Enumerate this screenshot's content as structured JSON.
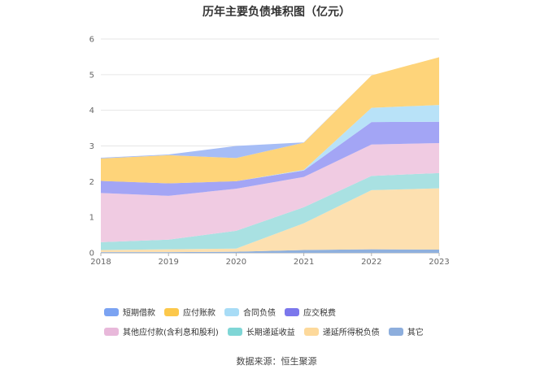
{
  "chart_data": {
    "type": "area",
    "stacked": true,
    "title": "历年主要负债堆积图（亿元）",
    "x": [
      "2018",
      "2019",
      "2020",
      "2021",
      "2022",
      "2023"
    ],
    "ylim": [
      0,
      6
    ],
    "yticks": [
      "0",
      "1",
      "2",
      "3",
      "4",
      "5",
      "6"
    ],
    "grid": true,
    "legend_position": "bottom",
    "series": [
      {
        "name": "其它",
        "color": "#8fb0dd",
        "values": [
          0.02,
          0.02,
          0.03,
          0.08,
          0.1,
          0.09
        ]
      },
      {
        "name": "递延所得税负债",
        "color": "#fde0b0",
        "values": [
          0.06,
          0.08,
          0.09,
          0.75,
          1.66,
          1.72
        ]
      },
      {
        "name": "长期递延收益",
        "color": "#a9e1e2",
        "values": [
          0.22,
          0.27,
          0.5,
          0.45,
          0.4,
          0.43
        ]
      },
      {
        "name": "其他应付款(含利息和股利)",
        "color": "#f0cbe2",
        "values": [
          1.38,
          1.23,
          1.18,
          0.85,
          0.88,
          0.84
        ]
      },
      {
        "name": "应交税费",
        "color": "#a3a5f5",
        "values": [
          0.34,
          0.35,
          0.21,
          0.18,
          0.63,
          0.6
        ]
      },
      {
        "name": "合同负债",
        "color": "#b8e2f8",
        "values": [
          0,
          0,
          0,
          0.02,
          0.4,
          0.47
        ]
      },
      {
        "name": "应付账款",
        "color": "#fed47a",
        "values": [
          0.63,
          0.79,
          0.65,
          0.76,
          0.91,
          1.34
        ]
      },
      {
        "name": "短期借款",
        "color": "#a6bdf6",
        "values": [
          0.02,
          0.02,
          0.34,
          0.01,
          0,
          0
        ]
      }
    ],
    "legend": [
      {
        "name": "短期借款",
        "color": "#7ba3f2"
      },
      {
        "name": "应付账款",
        "color": "#fcc84b"
      },
      {
        "name": "合同负债",
        "color": "#a8dcf6"
      },
      {
        "name": "应交税费",
        "color": "#7b77ec"
      },
      {
        "name": "其他应付款(含利息和股利)",
        "color": "#e8b8da"
      },
      {
        "name": "长期递延收益",
        "color": "#7fd6d6"
      },
      {
        "name": "递延所得税负债",
        "color": "#fdd99b"
      },
      {
        "name": "其它",
        "color": "#8daedd"
      }
    ]
  },
  "source": "数据来源：恒生聚源"
}
